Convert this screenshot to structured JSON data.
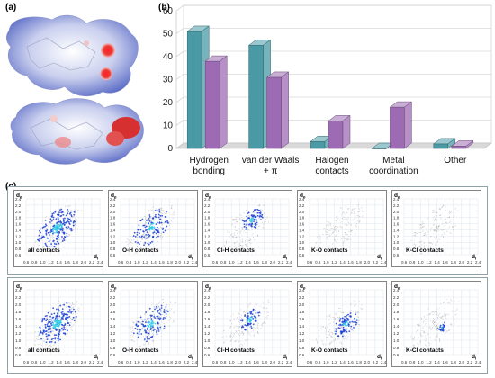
{
  "panels": {
    "a": "(a)",
    "b": "(b)",
    "c": "(c)"
  },
  "chart_data": {
    "type": "bar",
    "categories": [
      "Hydrogen\nbonding",
      "van der Waals\n+ π",
      "Halogen\ncontacts",
      "Metal\ncoordination",
      "Other"
    ],
    "series": [
      {
        "values": [
          51,
          45,
          3,
          0,
          2
        ]
      },
      {
        "values": [
          38,
          31,
          12,
          18,
          1
        ]
      }
    ],
    "ylim": [
      0,
      60
    ],
    "yticks": [
      0,
      10,
      20,
      30,
      40,
      50,
      60
    ],
    "grid": true,
    "colors": [
      "#4a9aa6",
      "#9d6bb3"
    ]
  },
  "fingerprints": {
    "axis_de": "d",
    "axis_de_sub": "e",
    "axis_di": "d",
    "axis_di_sub": "i",
    "y_ticks": [
      "2.4",
      "2.2",
      "2.0",
      "1.8",
      "1.6",
      "1.4",
      "1.2",
      "1.0",
      "0.8",
      "0.6"
    ],
    "x_ticks": [
      "0.6",
      "0.8",
      "1.0",
      "1.2",
      "1.4",
      "1.6",
      "1.8",
      "2.0",
      "2.2",
      "2.4"
    ],
    "row1": [
      "all contacts",
      "O-H contacts",
      "Cl-H contacts",
      "K-O contacts",
      "K-Cl contacts"
    ],
    "row2": [
      "all contacts",
      "O-H contacts",
      "Cl-H contacts",
      "K-O contacts",
      "K-Cl contacts"
    ]
  }
}
